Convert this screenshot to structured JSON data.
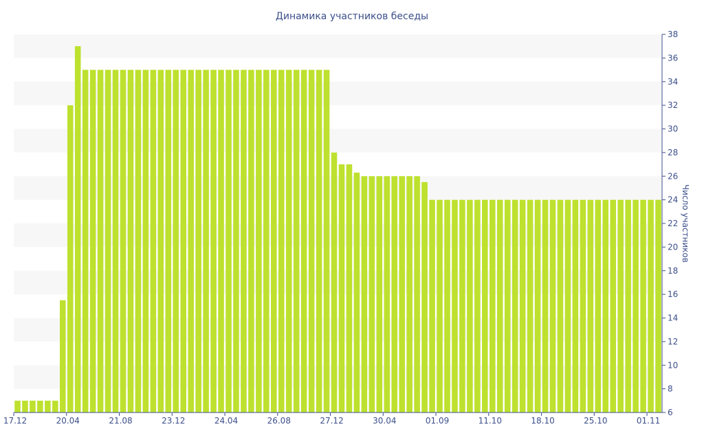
{
  "chart_data": {
    "type": "bar",
    "title": "Динамика участников беседы",
    "ylabel": "Число участников",
    "xlabel": "",
    "ylim": [
      6,
      38
    ],
    "y_ticks": [
      6,
      8,
      10,
      12,
      14,
      16,
      18,
      20,
      22,
      24,
      26,
      28,
      30,
      32,
      34,
      36,
      38
    ],
    "y_axis_position": "right",
    "grid": "alternating horizontal bands",
    "bar_color": "#bde12e",
    "text_color": "#3c4f8a",
    "x_tick_labels": [
      {
        "label": "17.12",
        "index": 0
      },
      {
        "label": "20.04",
        "index": 7
      },
      {
        "label": "21.08",
        "index": 14
      },
      {
        "label": "23.12",
        "index": 21
      },
      {
        "label": "24.04",
        "index": 28
      },
      {
        "label": "26.08",
        "index": 35
      },
      {
        "label": "27.12",
        "index": 42
      },
      {
        "label": "30.04",
        "index": 49
      },
      {
        "label": "01.09",
        "index": 56
      },
      {
        "label": "11.10",
        "index": 63
      },
      {
        "label": "18.10",
        "index": 70
      },
      {
        "label": "25.10",
        "index": 77
      },
      {
        "label": "01.11",
        "index": 84
      }
    ],
    "values": [
      7,
      7,
      7,
      7,
      7,
      7,
      15.5,
      32,
      37,
      35,
      35,
      35,
      35,
      35,
      35,
      35,
      35,
      35,
      35,
      35,
      35,
      35,
      35,
      35,
      35,
      35,
      35,
      35,
      35,
      35,
      35,
      35,
      35,
      35,
      35,
      35,
      35,
      35,
      35,
      35,
      35,
      35,
      28,
      27,
      27,
      26.3,
      26,
      26,
      26,
      26,
      26,
      26,
      26,
      26,
      25.5,
      24,
      24,
      24,
      24,
      24,
      24,
      24,
      24,
      24,
      24,
      24,
      24,
      24,
      24,
      24,
      24,
      24,
      24,
      24,
      24,
      24,
      24,
      24,
      24,
      24,
      24,
      24,
      24,
      24,
      24,
      24
    ]
  }
}
